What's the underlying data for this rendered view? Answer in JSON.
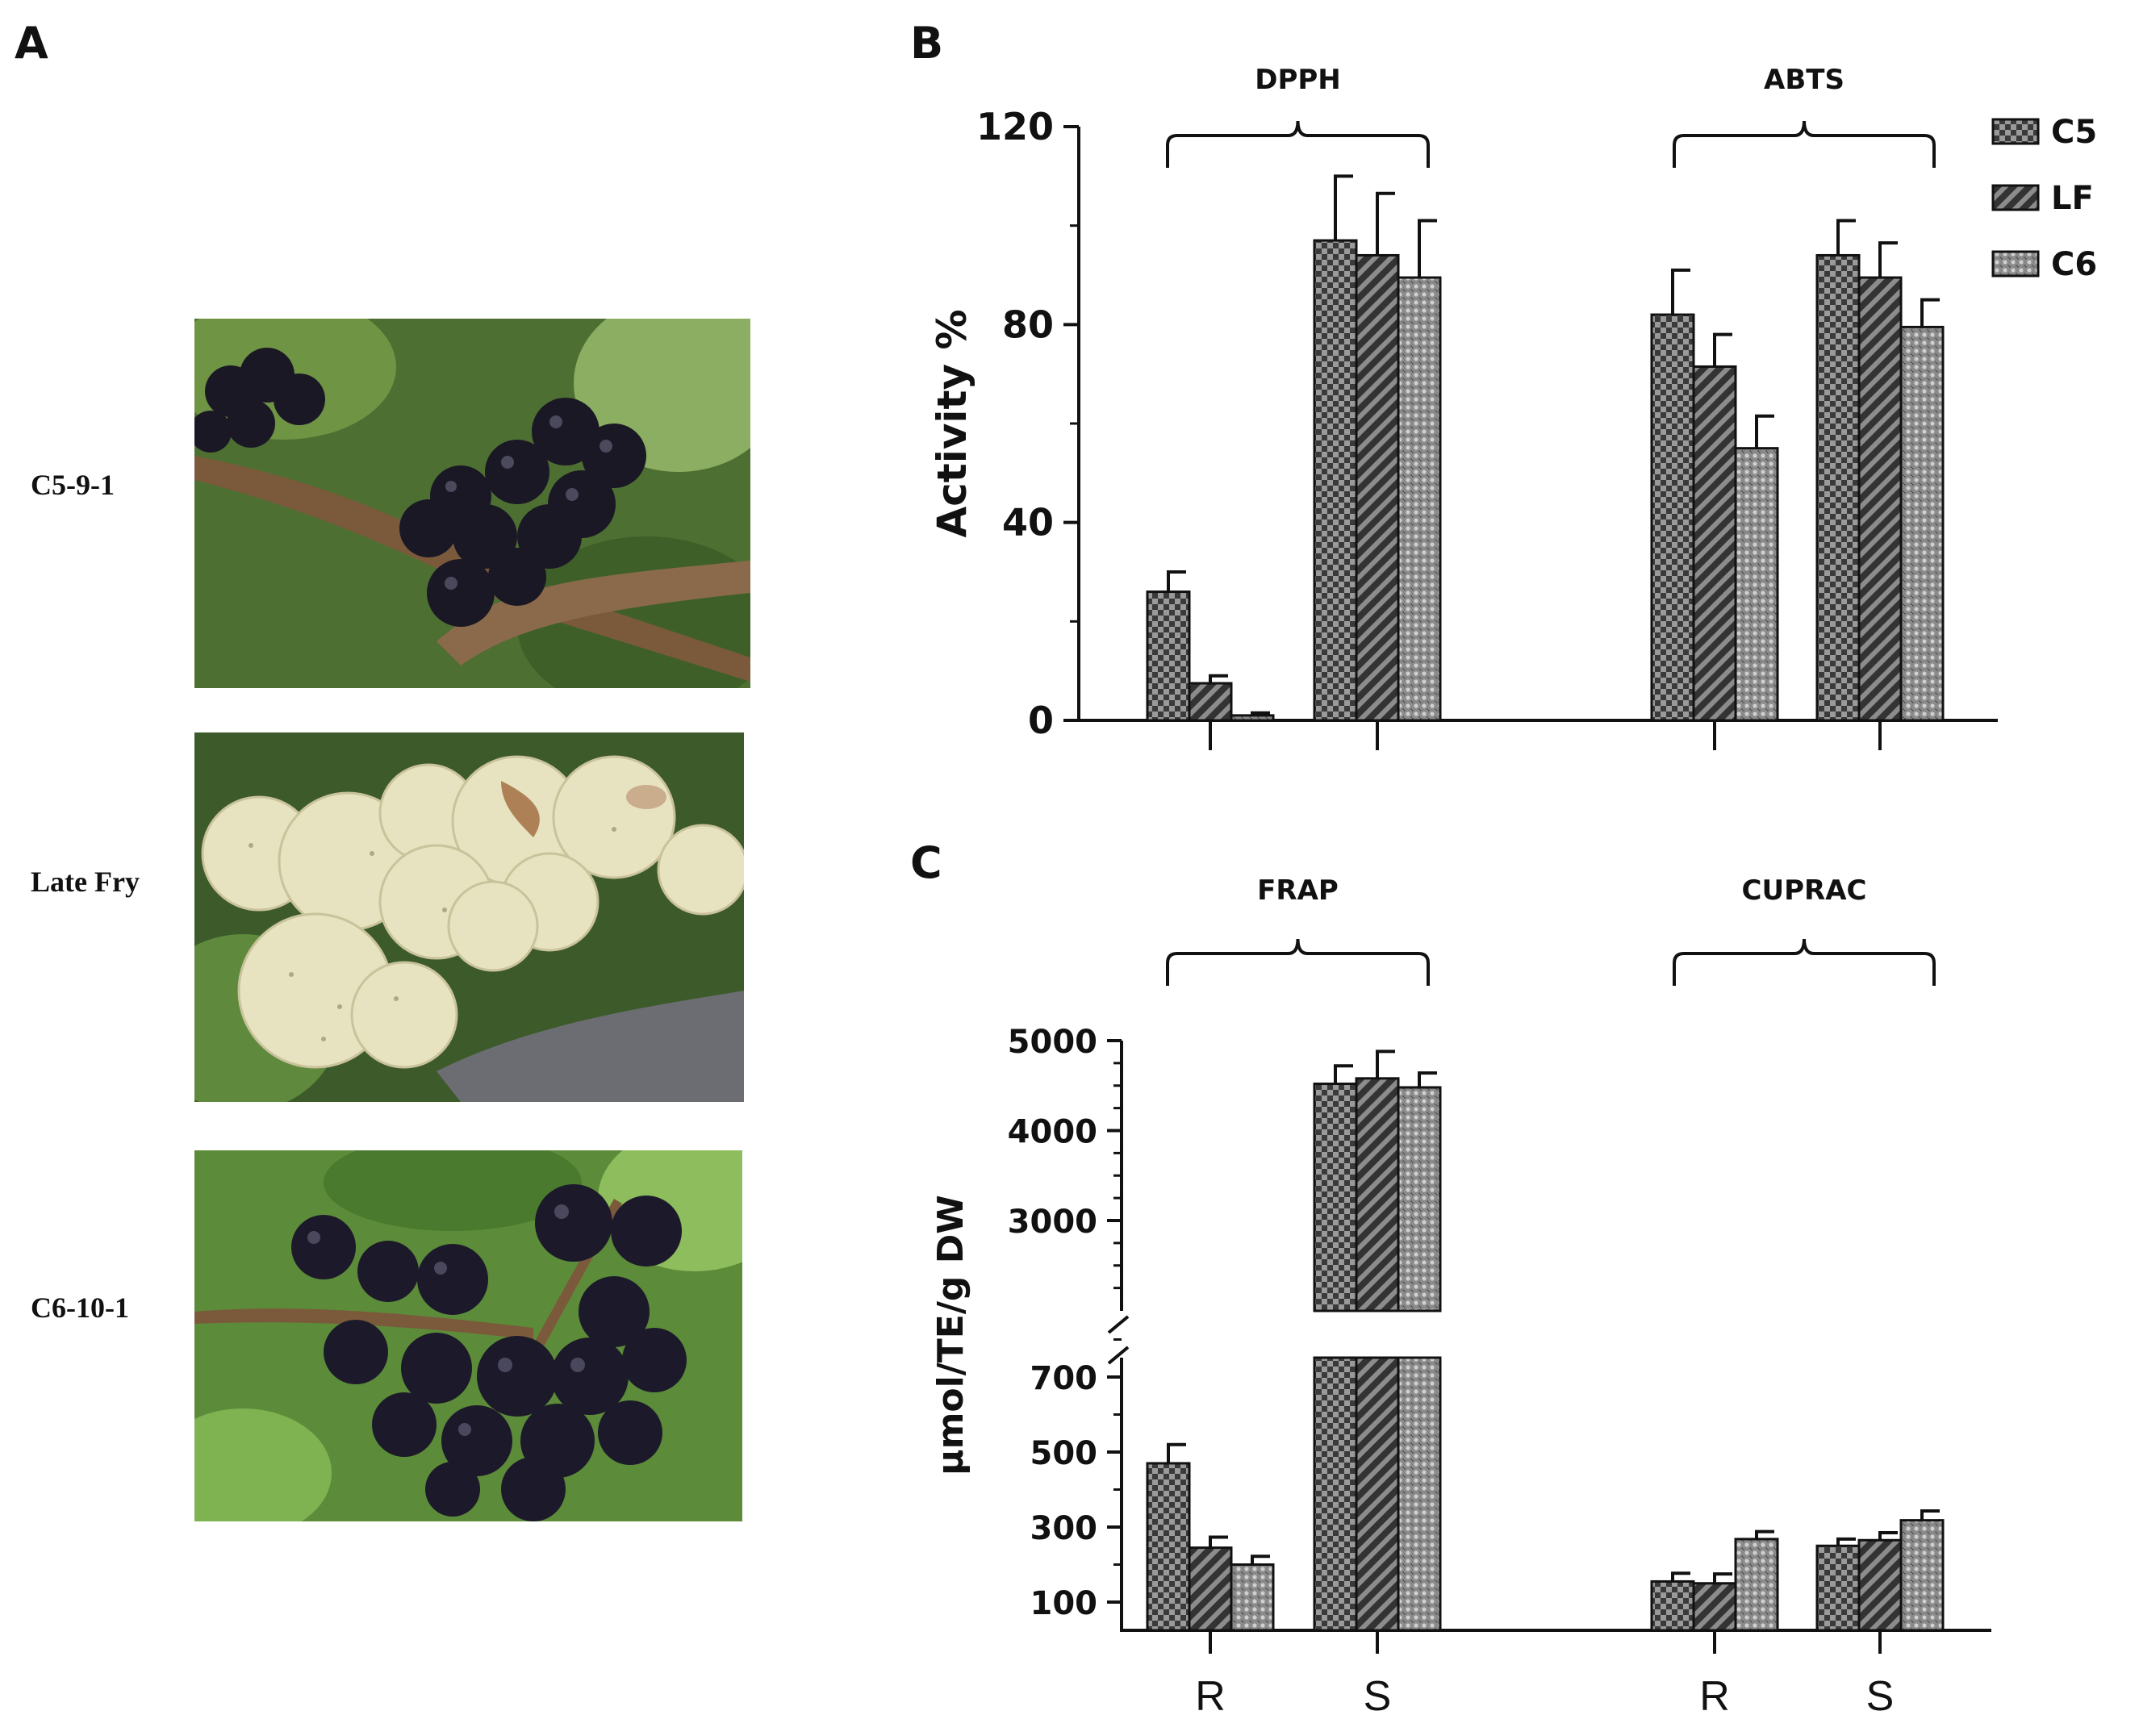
{
  "panels": {
    "a": "A",
    "b": "B",
    "c": "C"
  },
  "photos": [
    {
      "label": "C5-9-1",
      "berry": "dark"
    },
    {
      "label": "Late Fry",
      "berry": "bronze"
    },
    {
      "label": "C6-10-1",
      "berry": "dark"
    }
  ],
  "legend": [
    {
      "name": "C5",
      "pattern": "checker"
    },
    {
      "name": "LF",
      "pattern": "diagonal"
    },
    {
      "name": "C6",
      "pattern": "dots"
    }
  ],
  "chart_data": [
    {
      "panel": "B",
      "type": "bar",
      "ylabel": "Activity %",
      "ylim": [
        0,
        120
      ],
      "yticks": [
        0,
        40,
        80,
        120
      ],
      "groups": [
        {
          "label": "DPPH",
          "categories": [
            "R",
            "S"
          ]
        },
        {
          "label": "ABTS",
          "categories": [
            "R",
            "S"
          ]
        }
      ],
      "series": [
        {
          "name": "C5",
          "values": [
            26,
            97,
            82,
            94
          ],
          "errors": [
            4,
            13,
            9,
            7
          ]
        },
        {
          "name": "LF",
          "values": [
            7.5,
            94,
            71.5,
            89.5
          ],
          "errors": [
            1.5,
            12.5,
            6.5,
            7
          ]
        },
        {
          "name": "C6",
          "values": [
            1,
            89.5,
            55,
            79.5
          ],
          "errors": [
            0.5,
            11.5,
            6.5,
            5.5
          ]
        }
      ]
    },
    {
      "panel": "C",
      "type": "bar",
      "ylabel": "µmol/TE/g DW",
      "broken_axis": {
        "lower": [
          0,
          800
        ],
        "upper": [
          2000,
          5000
        ]
      },
      "yticks_lower": [
        100,
        300,
        500,
        700
      ],
      "yticks_upper": [
        3000,
        4000,
        5000
      ],
      "xticklabels": [
        "R",
        "S",
        "R",
        "S"
      ],
      "groups": [
        {
          "label": "FRAP",
          "categories": [
            "R",
            "S"
          ]
        },
        {
          "label": "CUPRAC",
          "categories": [
            "R",
            "S"
          ]
        }
      ],
      "series": [
        {
          "name": "C5",
          "values": [
            470,
            4520,
            155,
            250
          ],
          "errors": [
            50,
            200,
            22,
            18
          ]
        },
        {
          "name": "LF",
          "values": [
            245,
            4580,
            150,
            265
          ],
          "errors": [
            28,
            300,
            25,
            20
          ]
        },
        {
          "name": "C6",
          "values": [
            200,
            4480,
            268,
            318
          ],
          "errors": [
            22,
            160,
            20,
            25
          ]
        }
      ]
    }
  ]
}
